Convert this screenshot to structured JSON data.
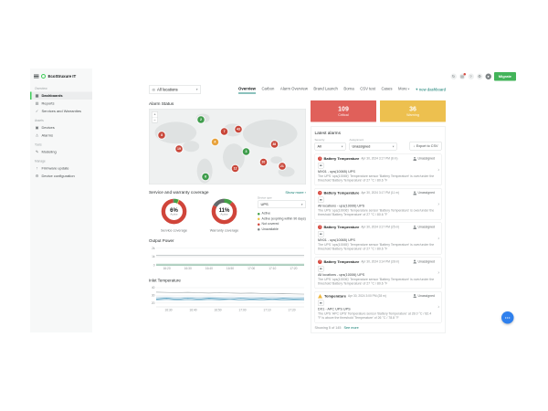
{
  "header": {
    "brand": "EcoStruxure IT",
    "migrate_label": "Migrate",
    "icons": [
      {
        "name": "refresh-icon",
        "glyph": "↻",
        "badge": false
      },
      {
        "name": "notifications-icon",
        "glyph": "▤",
        "badge": true
      },
      {
        "name": "help-icon",
        "glyph": "?",
        "badge": false
      },
      {
        "name": "settings-icon",
        "glyph": "⚙",
        "badge": false
      },
      {
        "name": "avatar",
        "glyph": "●",
        "badge": false
      }
    ]
  },
  "sidebar": {
    "sections": [
      {
        "label": "Overview",
        "items": [
          {
            "label": "Dashboards",
            "icon": "dashboards-icon",
            "glyph": "▦",
            "active": true
          },
          {
            "label": "Reports",
            "icon": "reports-icon",
            "glyph": "▤",
            "active": false
          },
          {
            "label": "Services and Warranties",
            "icon": "services-icon",
            "glyph": "✓",
            "active": false
          }
        ]
      },
      {
        "label": "Assets",
        "items": [
          {
            "label": "Devices",
            "icon": "devices-icon",
            "glyph": "▣",
            "active": false
          },
          {
            "label": "Alarms",
            "icon": "alarms-icon",
            "glyph": "⚠",
            "active": false
          }
        ]
      },
      {
        "label": "Tools",
        "items": [
          {
            "label": "Modeling",
            "icon": "modeling-icon",
            "glyph": "✎",
            "active": false
          }
        ]
      },
      {
        "label": "Manage",
        "items": [
          {
            "label": "Firmware update",
            "icon": "firmware-icon",
            "glyph": "↑",
            "active": false
          },
          {
            "label": "Device configuration",
            "icon": "configuration-icon",
            "glyph": "⚙",
            "active": false
          }
        ]
      }
    ]
  },
  "toolbar": {
    "location": {
      "value": "All locations"
    },
    "tabs": [
      {
        "label": "Overview",
        "active": true
      },
      {
        "label": "Carbon",
        "active": false
      },
      {
        "label": "Alarm Overview",
        "active": false
      },
      {
        "label": "Brand Launch",
        "active": false
      },
      {
        "label": "Borna",
        "active": false
      },
      {
        "label": "CSV test",
        "active": false
      },
      {
        "label": "Cases",
        "active": false
      },
      {
        "label": "More",
        "active": false
      }
    ],
    "new_dashboard_label": "new dashboard"
  },
  "alarm_summary": {
    "critical": {
      "count": "109",
      "label": "Critical",
      "color": "#e0605a"
    },
    "warning": {
      "count": "36",
      "label": "Warning",
      "color": "#edc04f"
    }
  },
  "map": {
    "title": "Alarm Status",
    "zoom_in": "+",
    "zoom_out": "−",
    "marker_colors": {
      "critical": "#c9473a",
      "ok": "#3f9d4c",
      "warning": "#e8a33d"
    },
    "markers": [
      {
        "name": "greenland",
        "count": "2",
        "type": "ok",
        "x": 33,
        "y": 14
      },
      {
        "name": "us-west",
        "count": "8",
        "type": "critical",
        "x": 8,
        "y": 35
      },
      {
        "name": "mexico",
        "count": "19",
        "type": "critical",
        "x": 19,
        "y": 53
      },
      {
        "name": "atlantic-cluster",
        "count": "4",
        "type": "warning",
        "x": 42,
        "y": 44
      },
      {
        "name": "south-america",
        "count": "6",
        "type": "ok",
        "x": 36,
        "y": 90
      },
      {
        "name": "europe-west",
        "count": "7",
        "type": "critical",
        "x": 48,
        "y": 30
      },
      {
        "name": "europe-north",
        "count": "43",
        "type": "critical",
        "x": 57,
        "y": 27
      },
      {
        "name": "middle-east",
        "count": "3",
        "type": "ok",
        "x": 62,
        "y": 57
      },
      {
        "name": "asia-east",
        "count": "38",
        "type": "critical",
        "x": 80,
        "y": 47
      },
      {
        "name": "se-asia",
        "count": "20",
        "type": "critical",
        "x": 73,
        "y": 71
      },
      {
        "name": "australia",
        "count": "21",
        "type": "critical",
        "x": 85,
        "y": 76
      },
      {
        "name": "africa",
        "count": "12",
        "type": "critical",
        "x": 55,
        "y": 79
      }
    ]
  },
  "coverage": {
    "title": "Service and warranty coverage",
    "show_more": "Show more ›",
    "device_type": {
      "label": "Device type",
      "value": "UPS"
    },
    "legend": [
      {
        "label": "Active",
        "color": "#43a047"
      },
      {
        "label": "Active (expiring within 90 days)",
        "color": "#f0c23f"
      },
      {
        "label": "Not covered",
        "color": "#d0453a"
      },
      {
        "label": "Unavailable",
        "color": "#7d8385"
      }
    ]
  },
  "latest_alarms": {
    "title": "Latest alarms",
    "filters": {
      "severity": {
        "label": "Severity",
        "value": "All"
      },
      "assignment": {
        "label": "Assignment",
        "value": "Unassigned"
      },
      "export_label": "Export to CSV"
    },
    "items": [
      {
        "severity": "critical",
        "title": "Battery Temperature",
        "time": "Apr 30, 2024 3:17 PM (8 m)",
        "status": "Unassigned",
        "device": "MX01 - ups(10065) UPS",
        "desc": "The UPS 'ups(10065)' Temperature sensor 'Battery Temperature' is over/under the threshold 'Battery Temperature' of 27 °C / 80.6 °F"
      },
      {
        "severity": "critical",
        "title": "Battery Temperature",
        "time": "Apr 30, 2024 3:17 PM (11 m)",
        "status": "Unassigned",
        "device": "All locations - ups(10006) UPS",
        "desc": "The UPS 'ups(10006)' Temperature sensor 'Battery Temperature' is over/under the threshold 'Battery Temperature' of 27 °C / 80.6 °F"
      },
      {
        "severity": "critical",
        "title": "Battery Temperature",
        "time": "Apr 30, 2024 3:17 PM (25 m)",
        "status": "Unassigned",
        "device": "MX01 - ups(10065) UPS",
        "desc": "The UPS 'ups(10065)' Temperature sensor 'Battery Temperature' is over/under the threshold 'Battery Temperature' of 27 °C / 80.6 °F"
      },
      {
        "severity": "critical",
        "title": "Battery Temperature",
        "time": "Apr 30, 2024 3:14 PM (28 m)",
        "status": "Unassigned",
        "device": "All locations - ups(10006) UPS",
        "desc": "The UPS 'ups(10006)' Temperature sensor 'Battery Temperature' is over/under the threshold 'Battery Temperature' of 27 °C / 80.6 °F"
      },
      {
        "severity": "warning",
        "title": "Temperature",
        "time": "Apr 30, 2024 3:00 PM (28 m)",
        "status": "Unassigned",
        "device": "DX1 - APC UPS UPS",
        "desc": "The UPS 'APC UPS' Temperature sensor 'Battery Temperature' at 28.0 °C / 82.4 °F is above the threshold 'Temperature' of 26 °C / 78.8 °F"
      }
    ],
    "footer": {
      "showing": "Showing 5 of 145",
      "see_more": "See more"
    }
  },
  "chart_data": [
    {
      "id": "service_coverage",
      "type": "pie",
      "title": "Service coverage",
      "center_value": "6%",
      "center_label": "Active",
      "slices": [
        {
          "label": "Active",
          "value": 6,
          "color": "#43a047"
        },
        {
          "label": "Active (expiring within 90 days)",
          "value": 1,
          "color": "#f0c23f"
        },
        {
          "label": "Not covered",
          "value": 91,
          "color": "#d0453a"
        },
        {
          "label": "Unavailable",
          "value": 2,
          "color": "#7d8385"
        }
      ]
    },
    {
      "id": "warranty_coverage",
      "type": "pie",
      "title": "Warranty coverage",
      "center_value": "11%",
      "center_label": "Active",
      "slices": [
        {
          "label": "Active",
          "value": 11,
          "color": "#43a047"
        },
        {
          "label": "Not covered",
          "value": 72,
          "color": "#d0453a"
        },
        {
          "label": "Unavailable",
          "value": 17,
          "color": "#64696b"
        }
      ]
    },
    {
      "id": "output_power",
      "type": "line",
      "title": "Output Power",
      "xlabel": "",
      "ylabel": "",
      "ylim": [
        0,
        2300
      ],
      "yticks": [
        {
          "v": 2000,
          "label": "2k"
        },
        {
          "v": 1000,
          "label": "1k"
        },
        {
          "v": 0,
          "label": "0"
        }
      ],
      "x": [
        "16:20",
        "16:30",
        "16:40",
        "16:50",
        "17:00",
        "17:10",
        "17:20"
      ],
      "series": [
        {
          "name": "ups-output-band",
          "color": "#cfe0d6",
          "width": 5,
          "values": [
            70,
            70,
            70,
            70,
            70,
            70,
            70,
            70,
            70,
            70,
            70,
            70,
            70
          ]
        },
        {
          "name": "ups-output-max",
          "color": "#a9b0b2",
          "width": 1.4,
          "values": [
            1150,
            1150,
            1150,
            1150,
            1150,
            1150,
            1150,
            1150,
            1150,
            1150,
            1150,
            1150,
            1150
          ]
        },
        {
          "name": "ups-output-min",
          "color": "#6fae93",
          "width": 1.2,
          "values": [
            50,
            50,
            50,
            50,
            50,
            50,
            50,
            50,
            50,
            50,
            50,
            50,
            50
          ]
        }
      ]
    },
    {
      "id": "inlet_temperature",
      "type": "line",
      "title": "Inlet Temperature",
      "xlabel": "",
      "ylabel": "",
      "ylim": [
        15,
        43
      ],
      "yticks": [
        {
          "v": 40,
          "label": "40"
        },
        {
          "v": 30,
          "label": "30"
        },
        {
          "v": 20,
          "label": "20"
        }
      ],
      "x": [
        "16:30",
        "16:40",
        "16:50",
        "17:00",
        "17:10",
        "17:20"
      ],
      "series": [
        {
          "name": "temp-band",
          "color": "#d6e6ef",
          "width": 8,
          "values": [
            26,
            26.2,
            25.8,
            26.1,
            25.9,
            26.2,
            25.7,
            26.0,
            25.8,
            26.1,
            25.9,
            26.2,
            25.8,
            26.0,
            25.9
          ]
        },
        {
          "name": "temp-max",
          "color": "#a9b0b2",
          "width": 1.4,
          "values": [
            34.2,
            33.8,
            33.5,
            33.9,
            33.4,
            33.0,
            33.5,
            33.1,
            32.7,
            33.0,
            32.5,
            32.2,
            32.4,
            31.9,
            31.6
          ]
        },
        {
          "name": "temp-sensor-1",
          "color": "#3e93b8",
          "width": 1.2,
          "values": [
            25.2,
            26.4,
            24.8,
            26.6,
            25.1,
            26.2,
            25.6,
            24.9,
            26.3,
            25.2,
            26.0,
            24.9,
            26.1,
            25.3,
            25.7
          ]
        },
        {
          "name": "temp-sensor-2",
          "color": "#7fb6cd",
          "width": 1.2,
          "values": [
            24.0,
            24.8,
            23.9,
            24.6,
            23.8,
            24.7,
            24.1,
            24.9,
            23.9,
            24.4,
            24.0,
            24.6,
            23.8,
            24.3,
            24.1
          ]
        }
      ]
    }
  ]
}
